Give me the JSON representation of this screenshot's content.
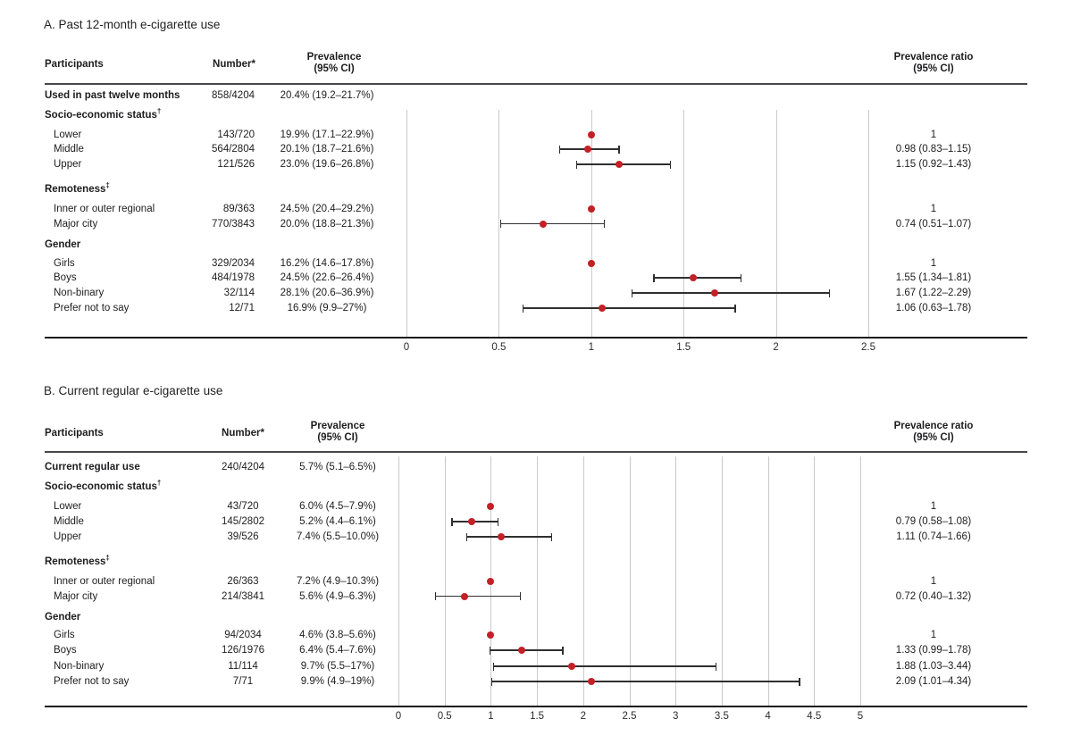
{
  "colors": {
    "point": "#c32127",
    "whisker": "#2f2f2f",
    "gridline": "#c9c9c9",
    "rule": "#1a1a1a",
    "header_rule": "#46484e",
    "text": "#1d1d1f"
  },
  "chart_data": [
    {
      "type": "forest",
      "panel": "A",
      "title": "A. Past 12-month e-cigarette use",
      "columns": {
        "participants": "Participants",
        "number": "Number*",
        "prevalence_line1": "Prevalence",
        "prevalence_line2": "(95% CI)",
        "ratio_line1": "Prevalence ratio",
        "ratio_line2": "(95% CI)"
      },
      "axis": {
        "min": 0,
        "max": 2.5,
        "tick_labels": [
          "0",
          "0.5",
          "1",
          "1.5",
          "2",
          "2.5"
        ],
        "tick_values": [
          0,
          0.5,
          1,
          1.5,
          2,
          2.5
        ]
      },
      "rows": [
        {
          "kind": "overall",
          "label": "Used in past twelve months",
          "number": "858/4204",
          "prevalence": "20.4% (19.2–21.7%)"
        },
        {
          "kind": "group",
          "label": "Socio-economic status",
          "marker": "†"
        },
        {
          "kind": "item",
          "label": "Lower",
          "number": "143/720",
          "prevalence": "19.9% (17.1–22.9%)",
          "ratio": "1",
          "ref": true,
          "est": 1
        },
        {
          "kind": "item",
          "label": "Middle",
          "number": "564/2804",
          "prevalence": "20.1% (18.7–21.6%)",
          "ratio": "0.98 (0.83–1.15)",
          "est": 0.98,
          "lo": 0.83,
          "hi": 1.15
        },
        {
          "kind": "item",
          "label": "Upper",
          "number": "121/526",
          "prevalence": "23.0% (19.6–26.8%)",
          "ratio": "1.15 (0.92–1.43)",
          "est": 1.15,
          "lo": 0.92,
          "hi": 1.43
        },
        {
          "kind": "group",
          "label": "Remoteness",
          "marker": "‡"
        },
        {
          "kind": "item",
          "label": "Inner or outer regional",
          "number": "89/363",
          "prevalence": "24.5% (20.4–29.2%)",
          "ratio": "1",
          "ref": true,
          "est": 1
        },
        {
          "kind": "item",
          "label": "Major city",
          "number": "770/3843",
          "prevalence": "20.0% (18.8–21.3%)",
          "ratio": "0.74 (0.51–1.07)",
          "est": 0.74,
          "lo": 0.51,
          "hi": 1.07
        },
        {
          "kind": "group",
          "label": "Gender",
          "marker": ""
        },
        {
          "kind": "item",
          "label": "Girls",
          "number": "329/2034",
          "prevalence": "16.2% (14.6–17.8%)",
          "ratio": "1",
          "ref": true,
          "est": 1
        },
        {
          "kind": "item",
          "label": "Boys",
          "number": "484/1978",
          "prevalence": "24.5% (22.6–26.4%)",
          "ratio": "1.55 (1.34–1.81)",
          "est": 1.55,
          "lo": 1.34,
          "hi": 1.81
        },
        {
          "kind": "item",
          "label": "Non-binary",
          "number": "32/114",
          "prevalence": "28.1% (20.6–36.9%)",
          "ratio": "1.67 (1.22–2.29)",
          "est": 1.67,
          "lo": 1.22,
          "hi": 2.29
        },
        {
          "kind": "item",
          "label": "Prefer not to say",
          "number": "12/71",
          "prevalence": "16.9% (9.9–27%)",
          "ratio": "1.06 (0.63–1.78)",
          "est": 1.06,
          "lo": 0.63,
          "hi": 1.78
        }
      ]
    },
    {
      "type": "forest",
      "panel": "B",
      "title": "B. Current regular e-cigarette use",
      "columns": {
        "participants": "Participants",
        "number": "Number*",
        "prevalence_line1": "Prevalence",
        "prevalence_line2": "(95% CI)",
        "ratio_line1": "Prevalence ratio",
        "ratio_line2": "(95% CI)"
      },
      "axis": {
        "min": 0,
        "max": 5,
        "tick_labels": [
          "0",
          "0.5",
          "1",
          "1.5",
          "2",
          "2.5",
          "3",
          "3.5",
          "4",
          "4.5",
          "5"
        ],
        "tick_values": [
          0,
          0.5,
          1,
          1.5,
          2,
          2.5,
          3,
          3.5,
          4,
          4.5,
          5
        ]
      },
      "rows": [
        {
          "kind": "overall",
          "label": "Current regular use",
          "number": "240/4204",
          "prevalence": "5.7% (5.1–6.5%)"
        },
        {
          "kind": "group",
          "label": "Socio-economic status",
          "marker": "†"
        },
        {
          "kind": "item",
          "label": "Lower",
          "number": "43/720",
          "prevalence": "6.0% (4.5–7.9%)",
          "ratio": "1",
          "ref": true,
          "est": 1
        },
        {
          "kind": "item",
          "label": "Middle",
          "number": "145/2802",
          "prevalence": "5.2% (4.4–6.1%)",
          "ratio": "0.79 (0.58–1.08)",
          "est": 0.79,
          "lo": 0.58,
          "hi": 1.08
        },
        {
          "kind": "item",
          "label": "Upper",
          "number": "39/526",
          "prevalence": "7.4% (5.5–10.0%)",
          "ratio": "1.11 (0.74–1.66)",
          "est": 1.11,
          "lo": 0.74,
          "hi": 1.66
        },
        {
          "kind": "group",
          "label": "Remoteness",
          "marker": "‡"
        },
        {
          "kind": "item",
          "label": "Inner or outer regional",
          "number": "26/363",
          "prevalence": "7.2% (4.9–10.3%)",
          "ratio": "1",
          "ref": true,
          "est": 1
        },
        {
          "kind": "item",
          "label": "Major city",
          "number": "214/3841",
          "prevalence": "5.6% (4.9–6.3%)",
          "ratio": "0.72 (0.40–1.32)",
          "est": 0.72,
          "lo": 0.4,
          "hi": 1.32
        },
        {
          "kind": "group",
          "label": "Gender",
          "marker": ""
        },
        {
          "kind": "item",
          "label": "Girls",
          "number": "94/2034",
          "prevalence": "4.6% (3.8–5.6%)",
          "ratio": "1",
          "ref": true,
          "est": 1
        },
        {
          "kind": "item",
          "label": "Boys",
          "number": "126/1976",
          "prevalence": "6.4% (5.4–7.6%)",
          "ratio": "1.33 (0.99–1.78)",
          "est": 1.33,
          "lo": 0.99,
          "hi": 1.78
        },
        {
          "kind": "item",
          "label": "Non-binary",
          "number": "11/114",
          "prevalence": "9.7% (5.5–17%)",
          "ratio": "1.88 (1.03–3.44)",
          "est": 1.88,
          "lo": 1.03,
          "hi": 3.44
        },
        {
          "kind": "item",
          "label": "Prefer not to say",
          "number": "7/71",
          "prevalence": "9.9% (4.9–19%)",
          "ratio": "2.09 (1.01–4.34)",
          "est": 2.09,
          "lo": 1.01,
          "hi": 4.34
        }
      ]
    }
  ]
}
